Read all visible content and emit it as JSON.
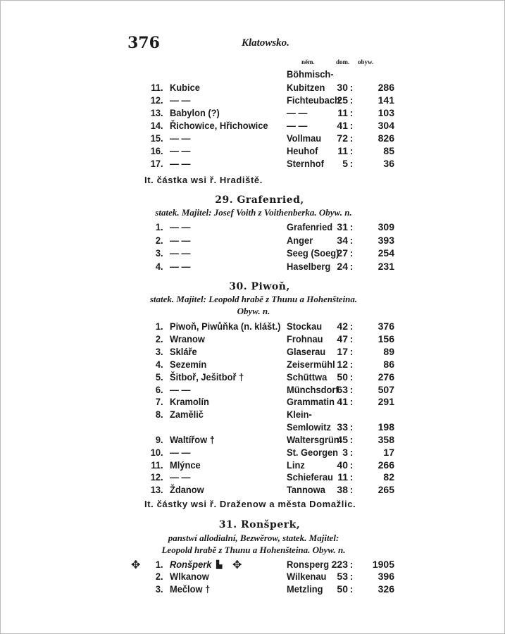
{
  "page_number": "376",
  "running_head": "Klatowsko.",
  "column_headers": {
    "german": "něm.",
    "houses": "dom.",
    "inhabitants": "obyw."
  },
  "section_28_tail": {
    "rows": [
      {
        "num": "",
        "name": "",
        "german": "Böhmisch-",
        "dom": "",
        "obyw": ""
      },
      {
        "num": "11.",
        "name": "Kubice",
        "german": "Kubitzen",
        "dom": "30",
        "obyw": "286"
      },
      {
        "num": "12.",
        "name": "—   —",
        "german": "Fichteubach",
        "dom": "25",
        "obyw": "141"
      },
      {
        "num": "13.",
        "name": "Babylon (?)",
        "german": "—   —",
        "dom": "11",
        "obyw": "103"
      },
      {
        "num": "14.",
        "name": "Řichowice, Hřichowice",
        "german": "—   —",
        "dom": "41",
        "obyw": "304"
      },
      {
        "num": "15.",
        "name": "—   —",
        "german": "Vollmau",
        "dom": "72",
        "obyw": "826"
      },
      {
        "num": "16.",
        "name": "—   —",
        "german": "Heuhof",
        "dom": "11",
        "obyw": "85"
      },
      {
        "num": "17.",
        "name": "—   —",
        "german": "Sternhof",
        "dom": "5",
        "obyw": "36"
      }
    ],
    "note": "It. částka wsi ř. Hradiště."
  },
  "section_29": {
    "heading": "29. Grafenried,",
    "owner_lines": [
      "statek. Majitel: Josef Voith z Voithenberka. Obyw. n."
    ],
    "rows": [
      {
        "num": "1.",
        "name": "—   —",
        "german": "Grafenried",
        "dom": "31",
        "obyw": "309"
      },
      {
        "num": "2.",
        "name": "—   —",
        "german": "Anger",
        "dom": "34",
        "obyw": "393"
      },
      {
        "num": "3.",
        "name": "—   —",
        "german": "Seeg (Soeg)",
        "dom": "27",
        "obyw": "254"
      },
      {
        "num": "4.",
        "name": "—   —",
        "german": "Haselberg",
        "dom": "24",
        "obyw": "231"
      }
    ]
  },
  "section_30": {
    "heading": "30. Piwoň,",
    "owner_lines": [
      "statek. Majitel: Leopold hrabě z Thunu a Hohenšteina.",
      "Obyw. n."
    ],
    "rows": [
      {
        "num": "1.",
        "name": "Piwoň, Piwůňka (n. klášt.)",
        "german": "Stockau",
        "dom": "42",
        "obyw": "376"
      },
      {
        "num": "2.",
        "name": "Wranow",
        "german": "Frohnau",
        "dom": "47",
        "obyw": "156"
      },
      {
        "num": "3.",
        "name": "Skláře",
        "german": "Glaserau",
        "dom": "17",
        "obyw": "89"
      },
      {
        "num": "4.",
        "name": "Sezemín",
        "german": "Zeisermühl",
        "dom": "12",
        "obyw": "86"
      },
      {
        "num": "5.",
        "name": "Šitboř, Ješitboř †",
        "german": "Schüttwa",
        "dom": "50",
        "obyw": "276"
      },
      {
        "num": "6.",
        "name": "—   —",
        "german": "Münchsdorf",
        "dom": "63",
        "obyw": "507"
      },
      {
        "num": "7.",
        "name": "Kramolín",
        "german": "Grammatin",
        "dom": "41",
        "obyw": "291"
      },
      {
        "num": "8.",
        "name": "Zamělič",
        "german": "Klein-",
        "dom": "",
        "obyw": ""
      },
      {
        "num": "",
        "name": "",
        "german": "Semlowitz",
        "dom": "33",
        "obyw": "198"
      },
      {
        "num": "9.",
        "name": "Waltířow †",
        "german": "Waltersgrün",
        "dom": "45",
        "obyw": "358"
      },
      {
        "num": "10.",
        "name": "—   —",
        "german": "St. Georgen",
        "dom": "3",
        "obyw": "17"
      },
      {
        "num": "11.",
        "name": "Mlýnce",
        "german": "Linz",
        "dom": "40",
        "obyw": "266"
      },
      {
        "num": "12.",
        "name": "—   —",
        "german": "Schieferau",
        "dom": "11",
        "obyw": "82"
      },
      {
        "num": "13.",
        "name": "Ždanow",
        "german": "Tannowa",
        "dom": "38",
        "obyw": "265"
      }
    ],
    "note": "It. částky wsi ř. Draženow a města Domažlic."
  },
  "section_31": {
    "heading": "31. Ronšperk,",
    "owner_lines": [
      "panstwí allodialní, Bezwěrow, statek. Majitel:",
      "Leopold hrabě z Thunu a Hohenšteina. Obyw. n."
    ],
    "rows": [
      {
        "num": "1.",
        "name": "Ronšperk",
        "german": "Ronsperg",
        "dom": "223",
        "obyw": "1905"
      },
      {
        "num": "2.",
        "name": "Wlkanow",
        "german": "Wilkenau",
        "dom": "53",
        "obyw": "396"
      },
      {
        "num": "3.",
        "name": "Mečlow †",
        "german": "Metzling",
        "dom": "50",
        "obyw": "326"
      }
    ]
  }
}
